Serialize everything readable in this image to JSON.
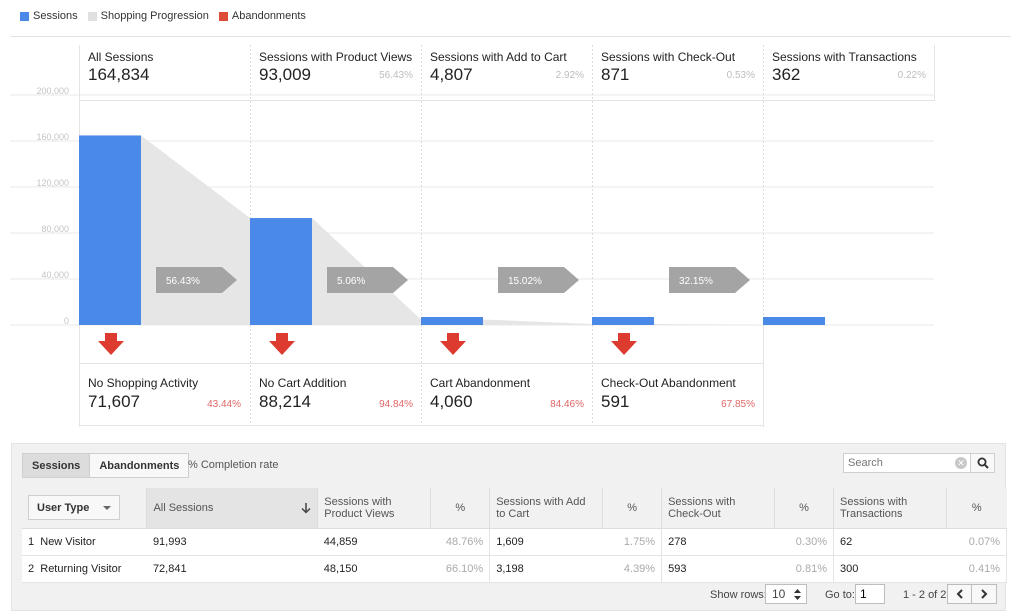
{
  "legend": [
    {
      "label": "Sessions",
      "color": "#4a89e8"
    },
    {
      "label": "Shopping Progression",
      "color": "#e0e0e0"
    },
    {
      "label": "Abandonments",
      "color": "#dd4b39"
    }
  ],
  "chart_data": {
    "type": "bar",
    "categories": [
      "All Sessions",
      "Sessions with Product Views",
      "Sessions with Add to Cart",
      "Sessions with Check-Out",
      "Sessions with Transactions"
    ],
    "values": [
      164834,
      93009,
      4807,
      871,
      362
    ],
    "value_labels": [
      "164,834",
      "93,009",
      "4,807",
      "871",
      "362"
    ],
    "stage_pct": [
      "",
      "56.43%",
      "2.92%",
      "0.53%",
      "0.22%"
    ],
    "progression_pct": [
      "56.43%",
      "5.06%",
      "15.02%",
      "32.15%"
    ],
    "yticks": [
      "200,000",
      "160,000",
      "120,000",
      "80,000",
      "40,000",
      "0"
    ],
    "ylim": [
      0,
      200000
    ],
    "grid": true,
    "abandonments": [
      {
        "label": "No Shopping Activity",
        "value": "71,607",
        "pct": "43.44%"
      },
      {
        "label": "No Cart Addition",
        "value": "88,214",
        "pct": "94.84%"
      },
      {
        "label": "Cart Abandonment",
        "value": "4,060",
        "pct": "84.46%"
      },
      {
        "label": "Check-Out Abandonment",
        "value": "591",
        "pct": "67.85%"
      }
    ]
  },
  "table": {
    "tabs": [
      "Sessions",
      "Abandonments"
    ],
    "completion_label": "% Completion rate",
    "search_placeholder": "Search",
    "usertype_label": "User Type",
    "headers": [
      "All Sessions",
      "Sessions with Product Views",
      "%",
      "Sessions with Add to Cart",
      "%",
      "Sessions with Check-Out",
      "%",
      "Sessions with Transactions",
      "%"
    ],
    "rows": [
      {
        "index": "1",
        "type": "New Visitor",
        "cells": [
          "91,993",
          "44,859",
          "48.76%",
          "1,609",
          "1.75%",
          "278",
          "0.30%",
          "62",
          "0.07%"
        ]
      },
      {
        "index": "2",
        "type": "Returning Visitor",
        "cells": [
          "72,841",
          "48,150",
          "66.10%",
          "3,198",
          "4.39%",
          "593",
          "0.81%",
          "300",
          "0.41%"
        ]
      }
    ],
    "show_rows_label": "Show rows:",
    "rows_value": "10",
    "goto_label": "Go to:",
    "goto_value": "1",
    "range_label": "1 - 2 of 2"
  }
}
